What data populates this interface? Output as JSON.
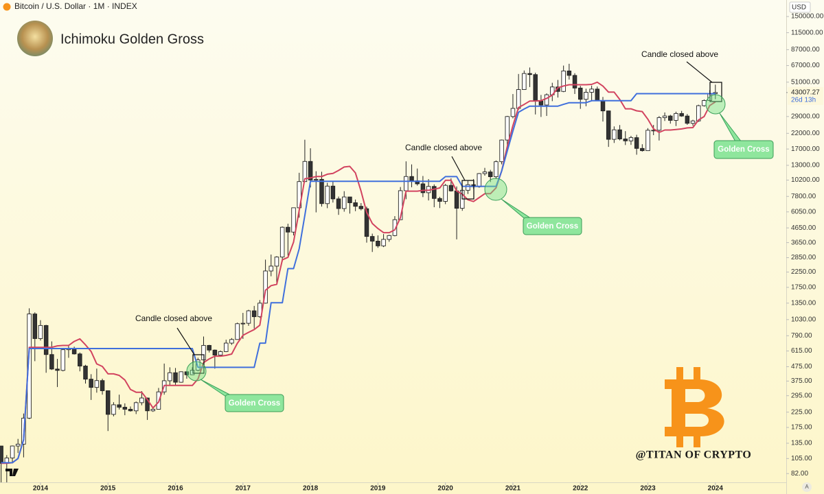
{
  "chart_data": {
    "type": "candlestick",
    "header": "Bitcoin / U.S. Dollar · 1M · INDEX",
    "title": "Ichimoku Golden Gross",
    "watermark": "@TITAN OF CRYPTO",
    "currency": "USD",
    "scale_button": "A",
    "last_price": 43007.27,
    "countdown": "26d 13h",
    "annotations": [
      "Candle closed above",
      "Candle closed above",
      "Candle closed above"
    ],
    "labels": [
      "Golden Cross",
      "Golden Cross",
      "Golden Cross"
    ],
    "log_scale": true,
    "up_color": "#ffffff",
    "down_color": "#333333",
    "ylim": [
      71,
      196800
    ],
    "yticks": [
      {
        "value": 150000,
        "label": "150000.00"
      },
      {
        "value": 115000,
        "label": "115000.00"
      },
      {
        "value": 87000,
        "label": "87000.00"
      },
      {
        "value": 67000,
        "label": "67000.00"
      },
      {
        "value": 51000,
        "label": "51000.00"
      },
      {
        "value": 29000,
        "label": "29000.00"
      },
      {
        "value": 22000,
        "label": "22000.00"
      },
      {
        "value": 17000,
        "label": "17000.00"
      },
      {
        "value": 13000,
        "label": "13000.00"
      },
      {
        "value": 10200,
        "label": "10200.00"
      },
      {
        "value": 7800,
        "label": "7800.00"
      },
      {
        "value": 6050,
        "label": "6050.00"
      },
      {
        "value": 4650,
        "label": "4650.00"
      },
      {
        "value": 3650,
        "label": "3650.00"
      },
      {
        "value": 2850,
        "label": "2850.00"
      },
      {
        "value": 2250,
        "label": "2250.00"
      },
      {
        "value": 1750,
        "label": "1750.00"
      },
      {
        "value": 1350,
        "label": "1350.00"
      },
      {
        "value": 1030,
        "label": "1030.00"
      },
      {
        "value": 790,
        "label": "790.00"
      },
      {
        "value": 615,
        "label": "615.00"
      },
      {
        "value": 475,
        "label": "475.00"
      },
      {
        "value": 375,
        "label": "375.00"
      },
      {
        "value": 295,
        "label": "295.00"
      },
      {
        "value": 225,
        "label": "225.00"
      },
      {
        "value": 175,
        "label": "175.00"
      },
      {
        "value": 135,
        "label": "135.00"
      },
      {
        "value": 105,
        "label": "105.00"
      },
      {
        "value": 82,
        "label": "82.00"
      }
    ],
    "xlim": [
      2013.4,
      2025.05
    ],
    "xticks": [
      2014,
      2015,
      2016,
      2017,
      2018,
      2019,
      2020,
      2021,
      2022,
      2023,
      2024
    ],
    "x": [
      "2013-06",
      "2013-07",
      "2013-08",
      "2013-09",
      "2013-10",
      "2013-11",
      "2013-12",
      "2014-01",
      "2014-02",
      "2014-03",
      "2014-04",
      "2014-05",
      "2014-06",
      "2014-07",
      "2014-08",
      "2014-09",
      "2014-10",
      "2014-11",
      "2014-12",
      "2015-01",
      "2015-02",
      "2015-03",
      "2015-04",
      "2015-05",
      "2015-06",
      "2015-07",
      "2015-08",
      "2015-09",
      "2015-10",
      "2015-11",
      "2015-12",
      "2016-01",
      "2016-02",
      "2016-03",
      "2016-04",
      "2016-05",
      "2016-06",
      "2016-07",
      "2016-08",
      "2016-09",
      "2016-10",
      "2016-11",
      "2016-12",
      "2017-01",
      "2017-02",
      "2017-03",
      "2017-04",
      "2017-05",
      "2017-06",
      "2017-07",
      "2017-08",
      "2017-09",
      "2017-10",
      "2017-11",
      "2017-12",
      "2018-01",
      "2018-02",
      "2018-03",
      "2018-04",
      "2018-05",
      "2018-06",
      "2018-07",
      "2018-08",
      "2018-09",
      "2018-10",
      "2018-11",
      "2018-12",
      "2019-01",
      "2019-02",
      "2019-03",
      "2019-04",
      "2019-05",
      "2019-06",
      "2019-07",
      "2019-08",
      "2019-09",
      "2019-10",
      "2019-11",
      "2019-12",
      "2020-01",
      "2020-02",
      "2020-03",
      "2020-04",
      "2020-05",
      "2020-06",
      "2020-07",
      "2020-08",
      "2020-09",
      "2020-10",
      "2020-11",
      "2020-12",
      "2021-01",
      "2021-02",
      "2021-03",
      "2021-04",
      "2021-05",
      "2021-06",
      "2021-07",
      "2021-08",
      "2021-09",
      "2021-10",
      "2021-11",
      "2021-12",
      "2022-01",
      "2022-02",
      "2022-03",
      "2022-04",
      "2022-05",
      "2022-06",
      "2022-07",
      "2022-08",
      "2022-09",
      "2022-10",
      "2022-11",
      "2022-12",
      "2023-01",
      "2023-02",
      "2023-03",
      "2023-04",
      "2023-05",
      "2023-06",
      "2023-07",
      "2023-08",
      "2023-09",
      "2023-10",
      "2023-11",
      "2023-12",
      "2024-01"
    ],
    "open": [
      129,
      97,
      106,
      129,
      133,
      204,
      1130,
      754,
      935,
      580,
      457,
      447,
      628,
      640,
      586,
      480,
      387,
      338,
      378,
      320,
      217,
      254,
      244,
      236,
      230,
      263,
      284,
      230,
      236,
      314,
      377,
      430,
      368,
      437,
      416,
      448,
      531,
      674,
      624,
      575,
      609,
      700,
      743,
      963,
      970,
      1190,
      1080,
      1350,
      2290,
      2480,
      2880,
      4700,
      4340,
      6470,
      9950,
      13860,
      10220,
      10330,
      6930,
      9240,
      7490,
      6390,
      7730,
      7030,
      6630,
      6370,
      4040,
      3740,
      3460,
      3850,
      4100,
      5320,
      8570,
      10820,
      10080,
      9590,
      8290,
      9190,
      7540,
      7190,
      9350,
      8540,
      6420,
      8630,
      9450,
      9140,
      11350,
      11660,
      10780,
      13800,
      19700,
      28990,
      33140,
      45170,
      58800,
      57750,
      37330,
      35040,
      41460,
      47130,
      43790,
      61320,
      57000,
      46300,
      38480,
      43190,
      45530,
      37640,
      31800,
      19930,
      23300,
      20050,
      19430,
      20490,
      17170,
      16540,
      23140,
      23150,
      28480,
      29250,
      27220,
      30480,
      29230,
      25940,
      26970,
      34650,
      37720,
      42280
    ],
    "high": [
      129,
      111,
      130,
      145,
      220,
      1240,
      1160,
      1020,
      945,
      720,
      540,
      635,
      680,
      660,
      600,
      490,
      420,
      460,
      390,
      320,
      265,
      300,
      260,
      247,
      268,
      318,
      286,
      245,
      335,
      500,
      470,
      465,
      440,
      440,
      470,
      550,
      780,
      680,
      630,
      620,
      740,
      760,
      980,
      1150,
      1210,
      1290,
      1420,
      2760,
      3000,
      2920,
      4760,
      4980,
      6470,
      11500,
      19800,
      17200,
      11800,
      11700,
      9750,
      9990,
      7780,
      8500,
      7750,
      7410,
      6990,
      6590,
      4230,
      4110,
      4200,
      4150,
      5640,
      9100,
      13880,
      13200,
      12330,
      10910,
      10370,
      9510,
      7750,
      9580,
      10500,
      9190,
      9460,
      10070,
      10380,
      11450,
      12470,
      12070,
      14100,
      19850,
      29300,
      41950,
      58350,
      61790,
      64900,
      59600,
      41330,
      42400,
      50500,
      52900,
      67000,
      69000,
      59100,
      48000,
      45800,
      48200,
      47450,
      40000,
      31950,
      24650,
      25200,
      22800,
      21100,
      21480,
      18390,
      23960,
      25250,
      29200,
      31000,
      29820,
      31390,
      31800,
      30220,
      27480,
      35200,
      38400,
      44700,
      48970
    ],
    "low": [
      66,
      66,
      98,
      115,
      107,
      201,
      520,
      730,
      430,
      450,
      340,
      440,
      550,
      580,
      440,
      360,
      275,
      310,
      300,
      165,
      210,
      235,
      214,
      227,
      218,
      252,
      198,
      226,
      236,
      300,
      350,
      350,
      365,
      390,
      414,
      440,
      530,
      600,
      460,
      580,
      604,
      680,
      740,
      750,
      930,
      890,
      1060,
      1340,
      2100,
      1830,
      2670,
      2950,
      4110,
      5500,
      9900,
      9040,
      6000,
      6600,
      6430,
      7050,
      5760,
      6070,
      5880,
      6120,
      6200,
      3650,
      3130,
      3350,
      3390,
      3700,
      4050,
      5300,
      7450,
      9070,
      9320,
      7710,
      7300,
      6530,
      6440,
      6870,
      8440,
      3850,
      6160,
      8120,
      8830,
      8990,
      10970,
      9880,
      10380,
      13220,
      17600,
      28130,
      32300,
      45000,
      47040,
      30000,
      28800,
      29280,
      37330,
      39600,
      43290,
      53250,
      42000,
      32900,
      34320,
      37200,
      37700,
      26700,
      17600,
      18780,
      19600,
      18150,
      18190,
      15480,
      16300,
      16500,
      21350,
      19550,
      26950,
      25800,
      24800,
      28860,
      25300,
      24900,
      26560,
      34100,
      37600,
      38550
    ],
    "close": [
      97,
      106,
      129,
      133,
      204,
      1130,
      754,
      935,
      580,
      457,
      447,
      628,
      640,
      586,
      480,
      387,
      338,
      378,
      320,
      217,
      254,
      244,
      236,
      230,
      263,
      284,
      230,
      236,
      314,
      377,
      430,
      368,
      437,
      416,
      448,
      531,
      674,
      624,
      575,
      609,
      700,
      743,
      963,
      970,
      1190,
      1080,
      1350,
      2290,
      2480,
      2880,
      4700,
      4340,
      6470,
      9950,
      13860,
      10220,
      10330,
      6930,
      9240,
      7490,
      6390,
      7730,
      7030,
      6630,
      6370,
      4040,
      3740,
      3460,
      3850,
      4100,
      5320,
      8570,
      10820,
      10080,
      9590,
      8290,
      9190,
      7540,
      7190,
      9350,
      8540,
      6420,
      8630,
      9450,
      9140,
      11350,
      11660,
      10780,
      13800,
      19700,
      28990,
      33140,
      45170,
      58800,
      57750,
      37330,
      35040,
      41460,
      47130,
      43790,
      61320,
      57000,
      46300,
      38480,
      43190,
      45530,
      37640,
      31800,
      19930,
      23300,
      20050,
      19430,
      20490,
      17170,
      16540,
      23140,
      23150,
      28480,
      29250,
      27220,
      30480,
      29230,
      25940,
      26970,
      34650,
      37720,
      42280,
      43007
    ],
    "series": [
      {
        "color": "#d2435f",
        "values": [
          97,
          97,
          98,
          105,
          143,
          653,
          653,
          653,
          653,
          653,
          669,
          673,
          673,
          720,
          750,
          680,
          610,
          497,
          477,
          422,
          422,
          412,
          382,
          327,
          312,
          312,
          277,
          241,
          266,
          349,
          349,
          349,
          349,
          349,
          349,
          388,
          508,
          540,
          565,
          565,
          572,
          585,
          697,
          795,
          835,
          875,
          940,
          1670,
          1800,
          1840,
          2750,
          2865,
          3680,
          6195,
          10430,
          10570,
          10815,
          10815,
          11235,
          11375,
          11955,
          12650,
          12780,
          11480,
          8500,
          6000,
          5000,
          4600,
          4300,
          4300,
          4500,
          5500,
          8505,
          8505,
          8505,
          8615,
          8635,
          8790,
          8965,
          10160,
          10160,
          8525,
          8090,
          7380,
          7175,
          7650,
          8160,
          8160,
          8975,
          11850,
          17730,
          25035,
          33590,
          35390,
          37390,
          37390,
          37640,
          39060,
          41250,
          46515,
          47900,
          48900,
          48900,
          48900,
          48900,
          49140,
          50950,
          47850,
          43300,
          43300,
          38350,
          32900,
          32900,
          31840,
          31465,
          27740,
          23715,
          22340,
          23240,
          23240,
          23435,
          23640,
          24050,
          24150,
          27375,
          28975,
          34750,
          36885
        ]
      },
      {
        "color": "#3f6fdc",
        "values": [
          98,
          98,
          98,
          105,
          143,
          640,
          640,
          640,
          640,
          640,
          640,
          640,
          640,
          640,
          640,
          640,
          640,
          640,
          640,
          640,
          640,
          640,
          640,
          640,
          640,
          640,
          640,
          640,
          640,
          640,
          640,
          640,
          640,
          640,
          640,
          470,
          470,
          470,
          470,
          470,
          470,
          470,
          470,
          470,
          470,
          470,
          700,
          700,
          1360,
          1360,
          1360,
          2380,
          2380,
          3300,
          5700,
          10000,
          10000,
          10000,
          10000,
          10000,
          10000,
          10000,
          10000,
          10000,
          10000,
          10000,
          10000,
          10000,
          10000,
          10000,
          10000,
          10000,
          10000,
          10000,
          10000,
          10000,
          10000,
          10000,
          10000,
          10800,
          10800,
          10800,
          9200,
          9200,
          9200,
          9200,
          9200,
          9200,
          9200,
          11850,
          16500,
          22900,
          31100,
          32800,
          34400,
          34400,
          34400,
          34400,
          34400,
          34400,
          35400,
          36400,
          36400,
          36400,
          36400,
          37600,
          37600,
          37600,
          37600,
          37600,
          37600,
          37600,
          37600,
          42200,
          42200,
          42200,
          42200,
          42200,
          42200,
          42200,
          42200,
          42200,
          42200,
          42200,
          42200,
          42200,
          42200,
          42200
        ]
      }
    ]
  }
}
